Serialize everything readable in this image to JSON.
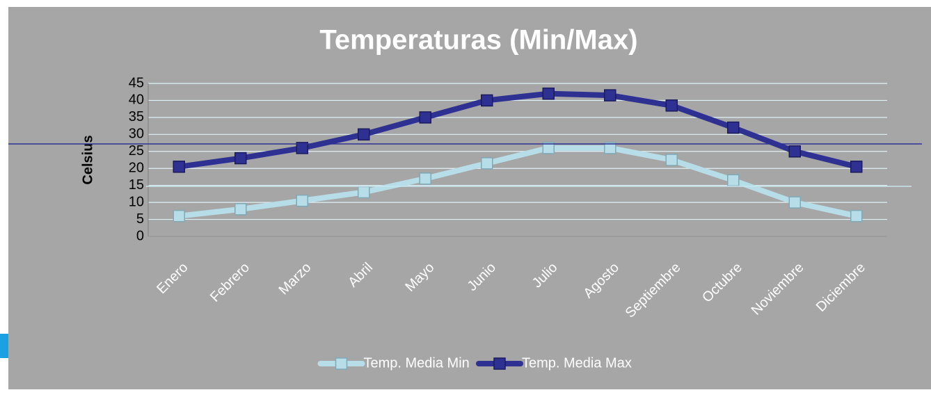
{
  "chart_data": {
    "type": "line",
    "title": "Temperaturas (Min/Max)",
    "y_label": "Celsius",
    "categories": [
      "Enero",
      "Febrero",
      "Marzo",
      "Abril",
      "Mayo",
      "Junio",
      "Julio",
      "Agosto",
      "Septiembre",
      "Octubre",
      "Noviembre",
      "Diciembre"
    ],
    "series": [
      {
        "name": "Temp. Media Min",
        "color": "#b7dde8",
        "values": [
          6,
          8,
          10.5,
          13,
          17,
          21.5,
          26,
          26,
          22.5,
          16.5,
          10,
          6
        ]
      },
      {
        "name": "Temp. Media Max",
        "color": "#2e3092",
        "values": [
          20.5,
          23,
          26,
          30,
          35,
          40,
          42,
          41.5,
          38.5,
          32,
          25,
          20.5
        ]
      }
    ],
    "ylim": [
      0,
      45
    ],
    "yticks": [
      0,
      5,
      10,
      15,
      20,
      25,
      30,
      35,
      40,
      45
    ],
    "grid": true,
    "legend": "bottom"
  }
}
